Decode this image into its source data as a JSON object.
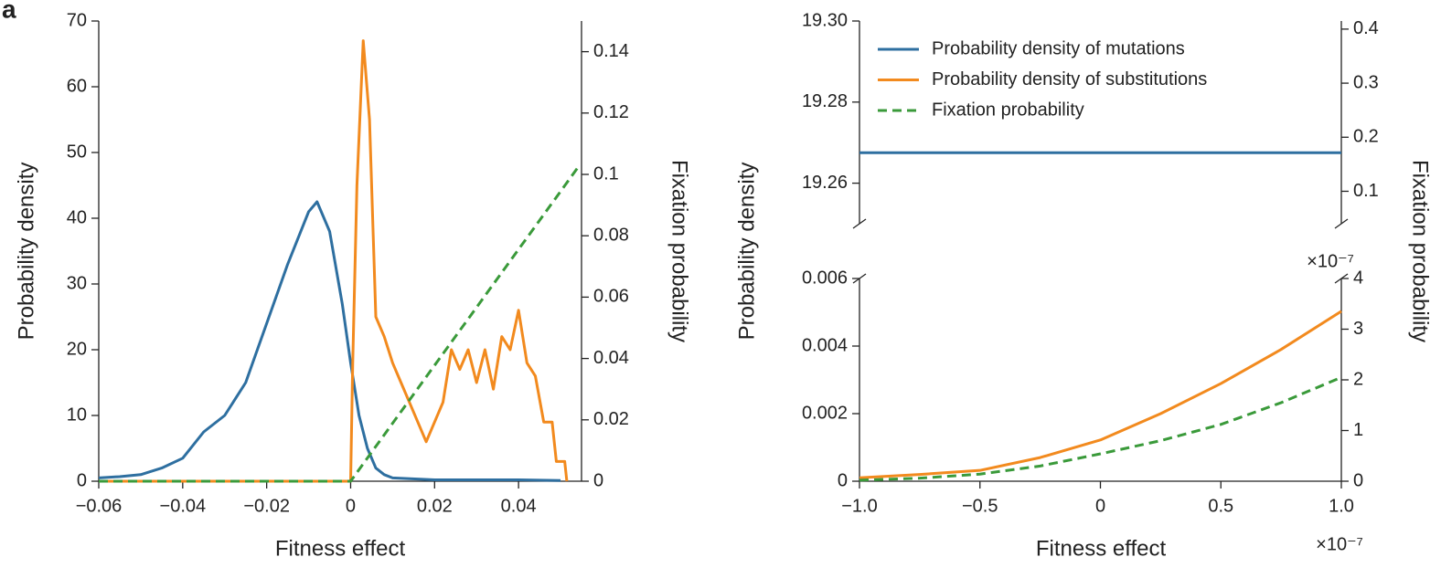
{
  "panel_label": "a",
  "chart_data": [
    {
      "type": "line",
      "xlabel": "Fitness effect",
      "ylabel": "Probability density",
      "y2label": "Fixation probability",
      "xlim": [
        -0.06,
        0.055
      ],
      "xticks": [
        {
          "value": -0.06,
          "label": "−0.06"
        },
        {
          "value": -0.04,
          "label": "−0.04"
        },
        {
          "value": -0.02,
          "label": "−0.02"
        },
        0,
        0.02,
        0.04
      ],
      "ylim": [
        0,
        70
      ],
      "yticks": [
        0,
        10,
        20,
        30,
        40,
        50,
        60,
        70
      ],
      "y2lim": [
        0,
        0.15
      ],
      "y2ticks": [
        0,
        0.02,
        0.04,
        0.06,
        0.08,
        0.1,
        0.12,
        0.14
      ],
      "series": [
        {
          "color": "#2e6fa0",
          "dash": false,
          "axis": "y",
          "x": [
            -0.06,
            -0.055,
            -0.05,
            -0.045,
            -0.04,
            -0.035,
            -0.03,
            -0.025,
            -0.02,
            -0.015,
            -0.01,
            -0.008,
            -0.005,
            -0.002,
            0,
            0.002,
            0.004,
            0.006,
            0.008,
            0.01,
            0.02,
            0.03,
            0.04,
            0.05
          ],
          "values": [
            0.5,
            0.7,
            1,
            2,
            3.5,
            7.5,
            10,
            15,
            24,
            33,
            41,
            42.5,
            38,
            27,
            18,
            10,
            5,
            2,
            1,
            0.5,
            0.2,
            0.2,
            0.2,
            0.1
          ]
        },
        {
          "color": "#f28a1e",
          "dash": false,
          "axis": "y",
          "x": [
            -0.06,
            0,
            0.0005,
            0.0015,
            0.003,
            0.0045,
            0.006,
            0.008,
            0.01,
            0.012,
            0.014,
            0.016,
            0.018,
            0.02,
            0.022,
            0.024,
            0.026,
            0.028,
            0.03,
            0.032,
            0.034,
            0.036,
            0.038,
            0.04,
            0.042,
            0.044,
            0.046,
            0.048,
            0.049,
            0.051,
            0.0515
          ],
          "values": [
            0,
            0,
            18,
            45,
            67,
            55,
            25,
            22,
            18,
            15,
            12,
            9,
            6,
            9,
            12,
            20,
            17,
            20,
            15,
            20,
            14,
            22,
            20,
            26,
            18,
            16,
            9,
            9,
            3,
            3,
            0
          ]
        },
        {
          "color": "#3a9a3a",
          "dash": true,
          "axis": "y2",
          "x": [
            -0.06,
            0,
            0.054
          ],
          "values": [
            0,
            0,
            0.102
          ]
        }
      ]
    },
    {
      "type": "broken_line",
      "xlabel": "Fitness effect",
      "ylabel": "Probability density",
      "y2label": "Fixation probability",
      "xlim": [
        -1,
        1
      ],
      "xticks": [
        {
          "value": -1,
          "label": "−1.0"
        },
        {
          "value": -0.5,
          "label": "−0.5"
        },
        0,
        0.5,
        {
          "value": 1,
          "label": "1.0"
        }
      ],
      "x_multiplier": "×10⁻⁷",
      "legend": "upper left",
      "upper": {
        "ylim": [
          19.25,
          19.3
        ],
        "yticks": [
          19.26,
          19.28,
          {
            "value": 19.3,
            "label": "19.30"
          }
        ],
        "y2lim": [
          0.04,
          0.415
        ],
        "y2ticks": [
          0.1,
          0.2,
          0.3,
          0.4
        ]
      },
      "lower": {
        "ylim": [
          0,
          0.006
        ],
        "yticks": [
          0,
          0.002,
          0.004,
          0.006
        ],
        "y2lim": [
          0,
          4
        ],
        "y2ticks": [
          0,
          1,
          2,
          3,
          4
        ],
        "y2_multiplier": "×10⁻⁷"
      },
      "series": [
        {
          "name": "Probability density of mutations",
          "color": "#2e6fa0",
          "dash": false,
          "panel": "upper",
          "axis": "y",
          "x": [
            -1,
            1
          ],
          "values": [
            19.2675,
            19.2675
          ]
        },
        {
          "name": "Probability density of substitutions",
          "color": "#f28a1e",
          "dash": false,
          "panel": "lower",
          "axis": "y",
          "x": [
            -1,
            -0.75,
            -0.5,
            -0.25,
            0,
            0.25,
            0.5,
            0.75,
            1
          ],
          "values": [
            0.0001,
            0.0002,
            0.00032,
            0.0007,
            0.00122,
            0.002,
            0.00289,
            0.0039,
            0.00503
          ]
        },
        {
          "name": "Fixation probability",
          "color": "#3a9a3a",
          "dash": true,
          "panel": "lower",
          "axis": "y2",
          "x": [
            -1,
            -0.75,
            -0.5,
            -0.25,
            0,
            0.25,
            0.5,
            0.75,
            1
          ],
          "values": [
            0.02,
            0.06,
            0.14,
            0.3,
            0.54,
            0.8,
            1.12,
            1.55,
            2.05
          ]
        }
      ]
    }
  ]
}
